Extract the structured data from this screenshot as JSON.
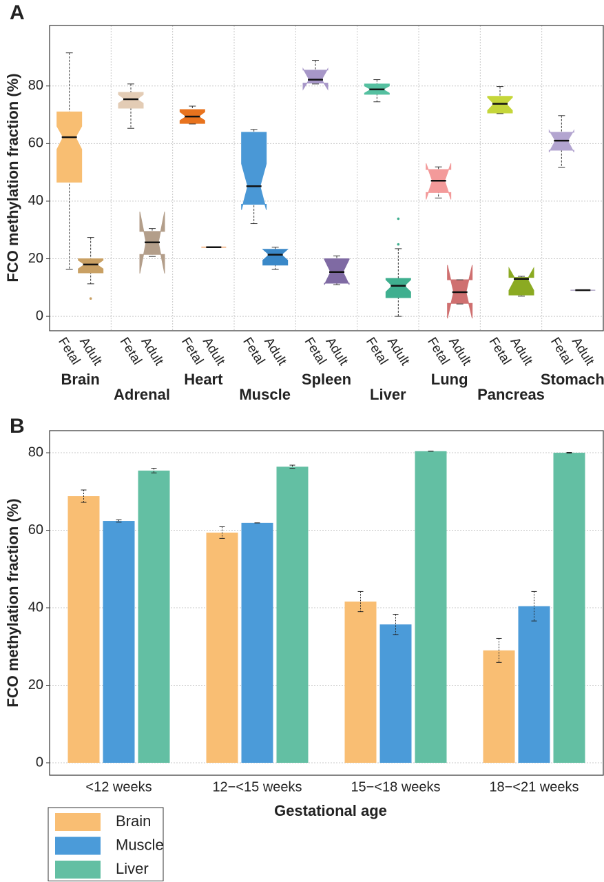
{
  "chart_data": [
    {
      "type": "box",
      "panel": "A",
      "ylabel": "FCO methylation fraction (%)",
      "ylim": [
        -5,
        101
      ],
      "yticks": [
        0,
        20,
        40,
        60,
        80
      ],
      "grid": true,
      "groups": [
        {
          "name": "Brain",
          "color": "#c99b5e",
          "boxes": [
            {
              "label": "Fetal",
              "color": "#f8be72",
              "min": 16.3,
              "q1": 46.6,
              "notch_low": 58,
              "median": 62.2,
              "notch_high": 66,
              "q3": 71,
              "max": 91.5
            },
            {
              "label": "Adult",
              "color": "#c9a063",
              "min": 11.3,
              "q1": 15.1,
              "notch_low": 16.5,
              "median": 18,
              "notch_high": 19.5,
              "q3": 20,
              "max": 27.4,
              "outliers": [
                6.2
              ]
            }
          ]
        },
        {
          "name": "Adrenal",
          "color": "#b9a18c",
          "boxes": [
            {
              "label": "Fetal",
              "color": "#e3ccb5",
              "min": 65.3,
              "q1": 72.3,
              "notch_low": 74,
              "median": 75.4,
              "notch_high": 77,
              "q3": 77.8,
              "max": 80.7
            },
            {
              "label": "Adult",
              "color": "#b39e8a",
              "min": 20.8,
              "q1": 21.5,
              "notch_low": 14.9,
              "median": 25.7,
              "notch_high": 36.3,
              "q3": 29.5,
              "max": 30.5
            }
          ]
        },
        {
          "name": "Heart",
          "color": "#e06a1b",
          "boxes": [
            {
              "label": "Fetal",
              "color": "#e8731e",
              "min": 66.8,
              "q1": 67,
              "notch_low": 68,
              "median": 69.4,
              "notch_high": 71,
              "q3": 71.8,
              "max": 73
            },
            {
              "label": "Adult",
              "color": "#e8731e",
              "min": 24,
              "q1": 24,
              "notch_low": 24,
              "median": 24,
              "notch_high": 24,
              "q3": 24,
              "max": 24
            }
          ]
        },
        {
          "name": "Muscle",
          "color": "#3b8ac9",
          "boxes": [
            {
              "label": "Fetal",
              "color": "#4a98d6",
              "min": 32.2,
              "q1": 38.9,
              "notch_low": 37,
              "median": 45.2,
              "notch_high": 53,
              "q3": 63.9,
              "max": 64.9
            },
            {
              "label": "Adult",
              "color": "#3a88c8",
              "min": 16.3,
              "q1": 17.8,
              "notch_low": 19.5,
              "median": 21.4,
              "notch_high": 23.3,
              "q3": 23.3,
              "max": 24
            }
          ]
        },
        {
          "name": "Spleen",
          "color": "#9282b5",
          "boxes": [
            {
              "label": "Fetal",
              "color": "#a797c8",
              "min": 80.7,
              "q1": 81,
              "notch_low": 78.8,
              "median": 82.2,
              "notch_high": 86,
              "q3": 85.5,
              "max": 88.9
            },
            {
              "label": "Adult",
              "color": "#7f6aa3",
              "min": 11,
              "q1": 11.5,
              "notch_low": 11,
              "median": 15.4,
              "notch_high": 19.8,
              "q3": 20,
              "max": 21
            }
          ]
        },
        {
          "name": "Liver",
          "color": "#4db698",
          "boxes": [
            {
              "label": "Fetal",
              "color": "#55c0a0",
              "min": 74.5,
              "q1": 77.1,
              "notch_low": 77.5,
              "median": 78.8,
              "notch_high": 80,
              "q3": 80.7,
              "max": 82.2
            },
            {
              "label": "Adult",
              "color": "#3faf8f",
              "min": 0,
              "q1": 6.5,
              "notch_low": 8.5,
              "median": 10.6,
              "notch_high": 12.7,
              "q3": 13.2,
              "max": 23.5,
              "outliers": [
                33.9,
                25
              ]
            }
          ]
        },
        {
          "name": "Lung",
          "color": "#e08080",
          "boxes": [
            {
              "label": "Fetal",
              "color": "#f39a9a",
              "min": 41.1,
              "q1": 43,
              "notch_low": 40.6,
              "median": 47.1,
              "notch_high": 53.1,
              "q3": 51,
              "max": 51.9
            },
            {
              "label": "Adult",
              "color": "#cf7070",
              "min": 4.3,
              "q1": 4.5,
              "notch_low": -0.7,
              "median": 8.4,
              "notch_high": 17.8,
              "q3": 12.7,
              "max": 12.7
            }
          ]
        },
        {
          "name": "Pancreas",
          "color": "#8db02a",
          "boxes": [
            {
              "label": "Fetal",
              "color": "#c5d63a",
              "min": 70.4,
              "q1": 70.6,
              "notch_low": 71.5,
              "median": 73.8,
              "notch_high": 76,
              "q3": 76.4,
              "max": 79.8
            },
            {
              "label": "Adult",
              "color": "#8baa22",
              "min": 7,
              "q1": 7.4,
              "notch_low": 9,
              "median": 13,
              "notch_high": 16.8,
              "q3": 13.5,
              "max": 13.9
            }
          ]
        },
        {
          "name": "Stomach",
          "color": "#8f80b0",
          "boxes": [
            {
              "label": "Fetal",
              "color": "#b3a5d0",
              "min": 51.7,
              "q1": 57.7,
              "notch_low": 57,
              "median": 61,
              "notch_high": 64.6,
              "q3": 63.9,
              "max": 69.7
            },
            {
              "label": "Adult",
              "color": "#8e7fad",
              "min": 9.1,
              "q1": 9.1,
              "notch_low": 9.1,
              "median": 9.1,
              "notch_high": 9.1,
              "q3": 9.1,
              "max": 9.1
            }
          ]
        }
      ]
    },
    {
      "type": "bar",
      "panel": "B",
      "ylabel": "FCO methylation fraction (%)",
      "xlabel": "Gestational age",
      "categories": [
        "<12 weeks",
        "12−<15 weeks",
        "15−<18 weeks",
        "18−<21 weeks"
      ],
      "ylim": [
        -3.2,
        85.7
      ],
      "yticks": [
        0,
        20,
        40,
        60,
        80
      ],
      "grid": true,
      "legend": "lower left",
      "series": [
        {
          "name": "Brain",
          "color": "#f9be73",
          "values": [
            68.8,
            59.4,
            41.6,
            29
          ],
          "errors": [
            1.6,
            1.5,
            2.6,
            3.1
          ]
        },
        {
          "name": "Muscle",
          "color": "#4b9bd9",
          "values": [
            62.4,
            61.9,
            35.7,
            40.4
          ],
          "errors": [
            0.3,
            0,
            2.6,
            3.8
          ]
        },
        {
          "name": "Liver",
          "color": "#63bfa3",
          "values": [
            75.4,
            76.4,
            80.4,
            80
          ],
          "errors": [
            0.6,
            0.4,
            0,
            0.1
          ]
        }
      ]
    }
  ]
}
